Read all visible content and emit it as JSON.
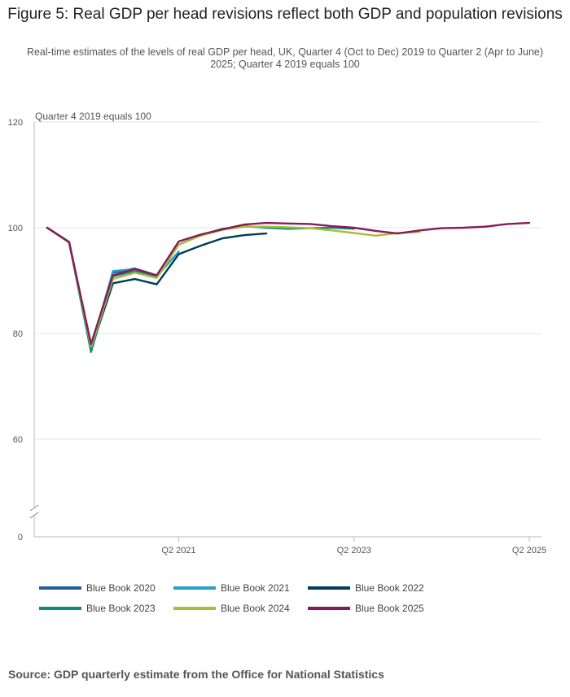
{
  "title": "Figure 5: Real GDP per head revisions reflect both GDP and population revisions",
  "subtitle": "Real-time estimates of the levels of real GDP per head, UK, Quarter 4 (Oct to Dec) 2019 to Quarter 2 (Apr to June) 2025; Quarter 4 2019 equals 100",
  "source": "Source: GDP quarterly estimate from the Office for National Statistics",
  "chart_data": {
    "type": "line",
    "title": "Figure 5: Real GDP per head revisions reflect both GDP and population revisions",
    "ylabel": "Quarter 4 2019 equals 100",
    "xlabel": "",
    "ylim": [
      0,
      120
    ],
    "yaxis_break": [
      0,
      50
    ],
    "yticks": [
      0,
      60,
      80,
      100,
      120
    ],
    "x_tick_labels": [
      {
        "index": 6,
        "label": "Q2 2021"
      },
      {
        "index": 14,
        "label": "Q2 2023"
      },
      {
        "index": 22,
        "label": "Q2 2025"
      }
    ],
    "x": [
      "Q4 2019",
      "Q1 2020",
      "Q2 2020",
      "Q3 2020",
      "Q4 2020",
      "Q1 2021",
      "Q2 2021",
      "Q3 2021",
      "Q4 2021",
      "Q1 2022",
      "Q2 2022",
      "Q3 2022",
      "Q4 2022",
      "Q1 2023",
      "Q2 2023",
      "Q3 2023",
      "Q4 2023",
      "Q1 2024",
      "Q2 2024",
      "Q3 2024",
      "Q4 2024",
      "Q1 2025",
      "Q2 2025"
    ],
    "series": [
      {
        "name": "Blue Book 2020",
        "color": "#206095",
        "values": [
          100,
          97.3,
          77.5,
          91.5,
          92.3,
          91.0,
          null,
          null,
          null,
          null,
          null,
          null,
          null,
          null,
          null,
          null,
          null,
          null,
          null,
          null,
          null,
          null,
          null
        ]
      },
      {
        "name": "Blue Book 2021",
        "color": "#27a0cc",
        "values": [
          100,
          97.2,
          77.0,
          91.8,
          92.2,
          90.8,
          95.5,
          null,
          null,
          null,
          null,
          null,
          null,
          null,
          null,
          null,
          null,
          null,
          null,
          null,
          null,
          null,
          null
        ]
      },
      {
        "name": "Blue Book 2022",
        "color": "#003c57",
        "values": [
          100,
          97.3,
          77.0,
          89.5,
          90.3,
          89.3,
          95.0,
          96.6,
          98.0,
          98.6,
          98.9,
          null,
          null,
          null,
          null,
          null,
          null,
          null,
          null,
          null,
          null,
          null,
          null
        ]
      },
      {
        "name": "Blue Book 2023",
        "color": "#118c7b",
        "values": [
          100,
          97.2,
          76.5,
          90.8,
          91.8,
          90.8,
          96.8,
          98.6,
          99.8,
          100.3,
          100.0,
          99.8,
          99.9,
          100.0,
          99.8,
          null,
          null,
          null,
          null,
          null,
          null,
          null,
          null
        ]
      },
      {
        "name": "Blue Book 2024",
        "color": "#a8bd3a",
        "values": [
          100,
          97.2,
          77.5,
          90.3,
          91.5,
          90.5,
          96.8,
          98.5,
          99.6,
          100.2,
          100.2,
          100.1,
          99.9,
          99.5,
          99.0,
          98.5,
          99.0,
          99.2,
          null,
          null,
          null,
          null,
          null
        ]
      },
      {
        "name": "Blue Book 2025",
        "color": "#871a5b",
        "values": [
          100,
          97.3,
          78.0,
          91.0,
          92.2,
          91.0,
          97.4,
          98.7,
          99.7,
          100.6,
          100.9,
          100.8,
          100.7,
          100.3,
          100.0,
          99.4,
          98.9,
          99.5,
          99.9,
          100.0,
          100.2,
          100.7,
          100.9
        ]
      }
    ],
    "legend_position": "bottom"
  }
}
